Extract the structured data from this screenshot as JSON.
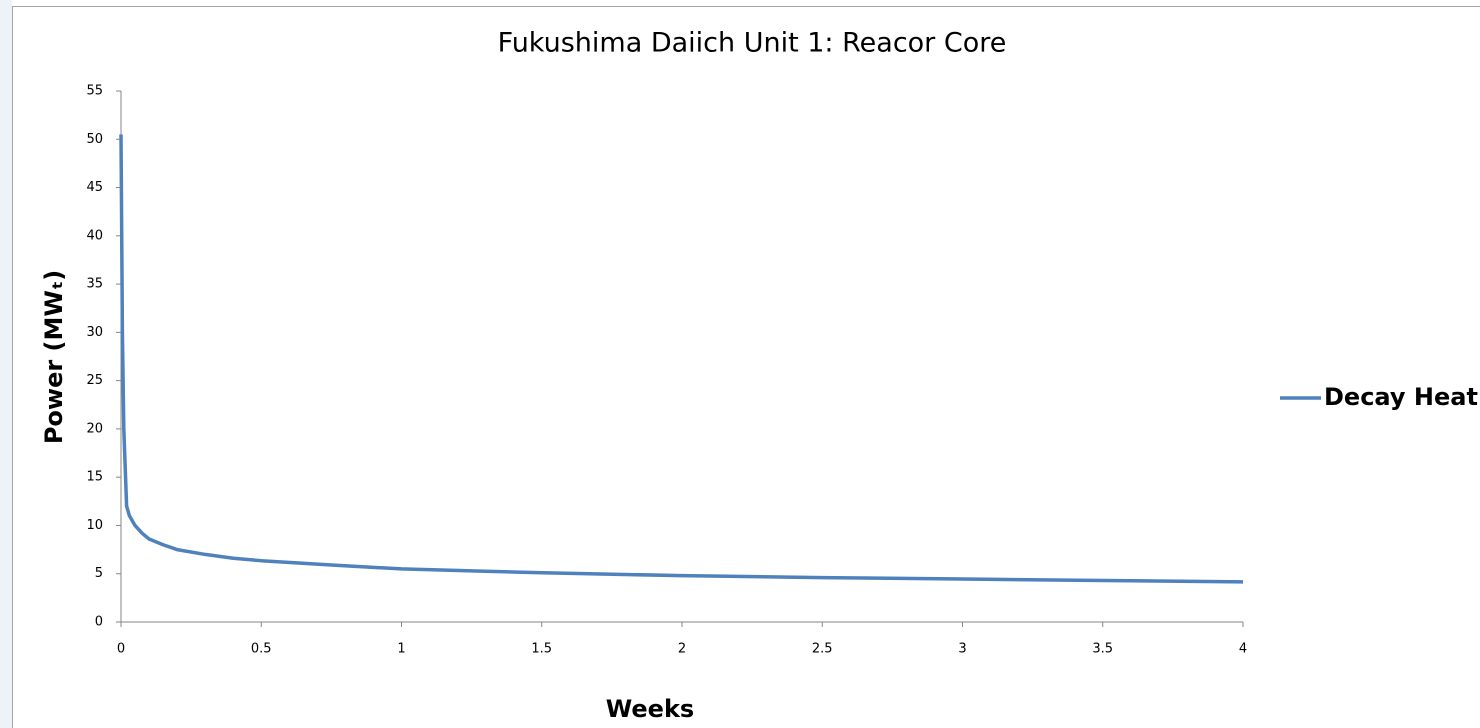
{
  "chart_data": {
    "type": "line",
    "title": "Fukushima Daiich Unit 1: Reacor Core",
    "x_label": "Weeks",
    "y_label": "Power (MWₜ)",
    "x": [
      0,
      0.005,
      0.01,
      0.02,
      0.03,
      0.05,
      0.075,
      0.1,
      0.15,
      0.2,
      0.3,
      0.4,
      0.5,
      0.75,
      1,
      1.25,
      1.5,
      2,
      2.5,
      3,
      3.5,
      4
    ],
    "series": [
      {
        "name": "Decay Heat",
        "color": "#4f81bd",
        "values": [
          50.5,
          30,
          20,
          12,
          11,
          10,
          9.2,
          8.6,
          8,
          7.5,
          7,
          6.6,
          6.35,
          5.9,
          5.5,
          5.3,
          5.1,
          4.8,
          4.6,
          4.45,
          4.3,
          4.15
        ]
      }
    ],
    "xlim": [
      0,
      4
    ],
    "xticks": [
      0,
      0.5,
      1,
      1.5,
      2,
      2.5,
      3,
      3.5,
      4
    ],
    "ylim": [
      0,
      55
    ],
    "yticks": [
      0,
      5,
      10,
      15,
      20,
      25,
      30,
      35,
      40,
      45,
      50,
      55
    ],
    "grid": false,
    "legend": "right"
  }
}
